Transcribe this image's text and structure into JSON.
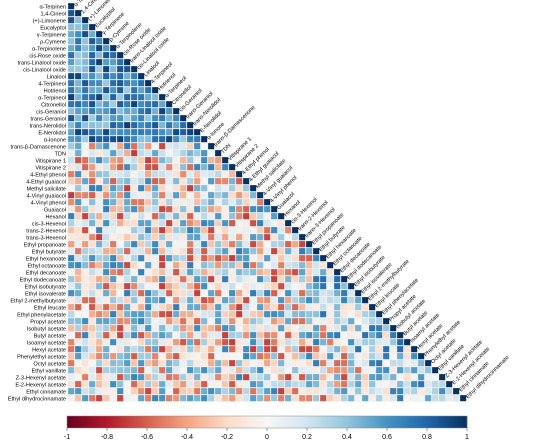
{
  "chart_data": {
    "type": "heatmap",
    "title": "",
    "shape": "lower-triangle",
    "variables": [
      "α-Terpinen",
      "1,4-Cineol",
      "(+)-Limonene",
      "Eucalyptol",
      "γ-Terpinene",
      "ρ-Cymene",
      "α-Terpinolene",
      "cis-Rose oxide",
      "trans-Linalool oxide",
      "cis-Linalool oxide",
      "Linalool",
      "4-Terpineol",
      "Hotrienol",
      "α-Terpineol",
      "Citronellol",
      "cis-Geraniol",
      "trans-Geraniol",
      "trans-Nerolidol",
      "E-Nerolidol",
      "α-Ionone",
      "trans-β-Damascenone",
      "TDN",
      "Vitispirane 1",
      "Vitispirane 2",
      "4-Ethyl phenol",
      "4-Ethyl guaiacol",
      "Methyl salicilate",
      "4-Vinyl guaiacol",
      "4-Vinyl phenol",
      "Guaiacol",
      "Hexanol",
      "cis-3-Hexenol",
      "trans-2-Hexenol",
      "trans-3-Hexenol",
      "Ethyl propanoate",
      "Ethyl butyrate",
      "Ethyl hexanoate",
      "Ethyl octanoate",
      "Ethyl decanoate",
      "Ethyl dodecanoate",
      "Ethyl isobutyrate",
      "Ethyl isovalerate",
      "Ethyl 2-methylbutyrate",
      "Ethyl leucate",
      "Ethyl phenylacetate",
      "Propyl acetate",
      "Isobutyl acetate",
      "Butyl acetate",
      "Isoamyl acetate",
      "Hexyl acetate",
      "Phenylethyl acetate",
      "Octyl acetate",
      "Ethyl vanillate",
      "Z-3-Hexenyl acetate",
      "E-2-Hexenyl acetate",
      "Ethyl cinnamate",
      "Ethyl dihydrocinnamate"
    ],
    "color_scale": {
      "min": -1,
      "max": 1,
      "ticks": [
        "-1",
        "-0.8",
        "-0.6",
        "-0.4",
        "-0.2",
        "0",
        "0.2",
        "0.4",
        "0.6",
        "0.8",
        "1"
      ],
      "colors": [
        "#67001f",
        "#b2182b",
        "#d6604d",
        "#f4a582",
        "#fddbc7",
        "#f7f7f7",
        "#d1e5f0",
        "#92c5de",
        "#4393c3",
        "#2166ac",
        "#053061"
      ]
    },
    "legend": "bottom"
  }
}
